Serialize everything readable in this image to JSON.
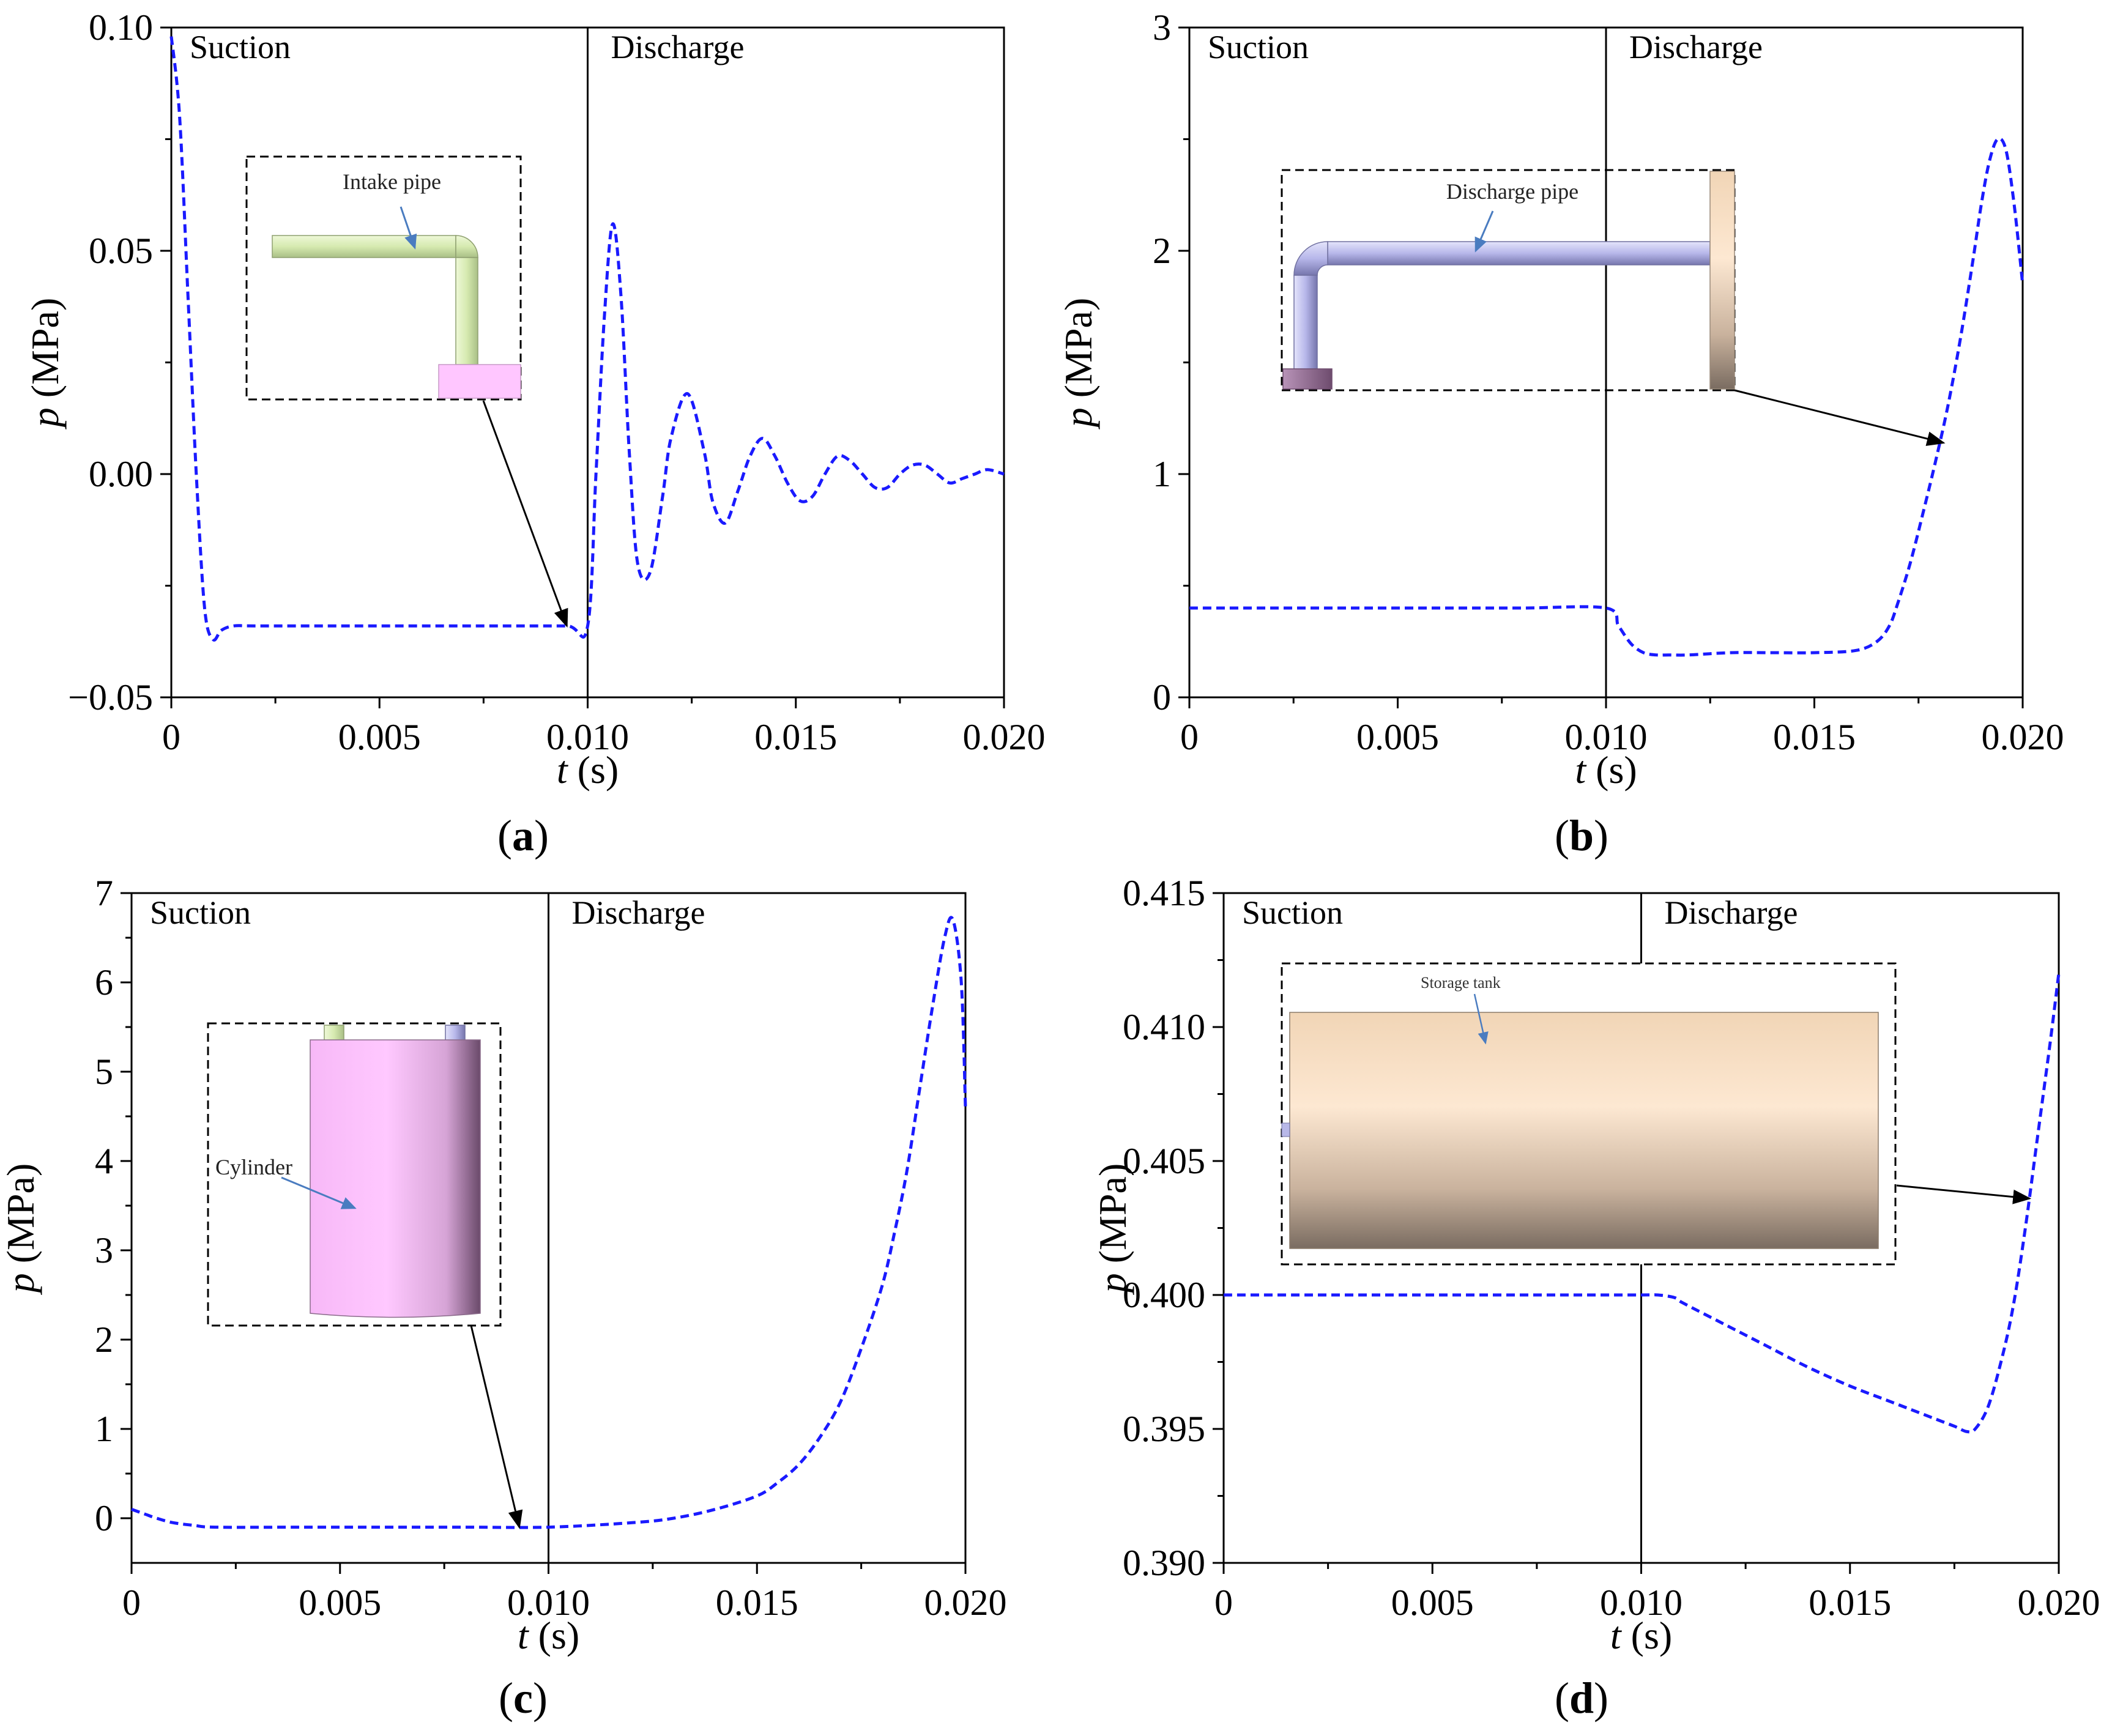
{
  "colors": {
    "series": "#1a1aff",
    "axis": "#000000",
    "pipe_green": "#d9ecb4",
    "pipe_purple": "#b8b8e8",
    "cylinder_pink": "#ffc6ff",
    "tank_tan": "#f1d9bc",
    "arrow_blue": "#4a7cc0"
  },
  "chart_data": [
    {
      "id": "a",
      "type": "line",
      "panel_label": "a",
      "xlabel_var": "t",
      "xlabel_unit": " (s)",
      "ylabel_var": "p",
      "ylabel_unit": " (MPa)",
      "xlim": [
        0,
        0.02
      ],
      "ylim": [
        -0.05,
        0.1
      ],
      "xticks": [
        0,
        0.005,
        0.01,
        0.015,
        0.02
      ],
      "xtick_labels": [
        "0",
        "0.005",
        "0.010",
        "0.015",
        "0.020"
      ],
      "yticks": [
        -0.05,
        0,
        0.05,
        0.1
      ],
      "ytick_labels": [
        "−0.05",
        "0.00",
        "0.05",
        "0.10"
      ],
      "divider_x": 0.01,
      "phase_labels": [
        "Suction",
        "Discharge"
      ],
      "inset_label": "Intake pipe",
      "arrow_target": [
        0.0095,
        -0.034
      ],
      "series": [
        {
          "name": "p",
          "style": "dashed",
          "x": [
            0,
            0.0002,
            0.0004,
            0.0006,
            0.0008,
            0.001,
            0.0012,
            0.0015,
            0.002,
            0.004,
            0.006,
            0.008,
            0.0095,
            0.01,
            0.0102,
            0.0104,
            0.0106,
            0.0108,
            0.011,
            0.0112,
            0.0115,
            0.0118,
            0.012,
            0.0124,
            0.0128,
            0.013,
            0.0133,
            0.0136,
            0.0139,
            0.0142,
            0.0145,
            0.0148,
            0.0151,
            0.0154,
            0.0157,
            0.016,
            0.0163,
            0.0166,
            0.0169,
            0.0172,
            0.0175,
            0.0178,
            0.0181,
            0.0184,
            0.0187,
            0.019,
            0.0193,
            0.0196,
            0.02
          ],
          "y": [
            0.098,
            0.08,
            0.04,
            0.0,
            -0.03,
            -0.037,
            -0.035,
            -0.034,
            -0.034,
            -0.034,
            -0.034,
            -0.034,
            -0.034,
            -0.034,
            0.0,
            0.035,
            0.056,
            0.04,
            0.005,
            -0.02,
            -0.022,
            -0.005,
            0.008,
            0.018,
            0.005,
            -0.006,
            -0.011,
            -0.004,
            0.004,
            0.008,
            0.004,
            -0.002,
            -0.006,
            -0.005,
            0.0,
            0.004,
            0.003,
            0.0,
            -0.003,
            -0.003,
            0.0,
            0.002,
            0.002,
            0.0,
            -0.002,
            -0.001,
            0.0,
            0.001,
            0.0
          ]
        }
      ]
    },
    {
      "id": "b",
      "type": "line",
      "panel_label": "b",
      "xlabel_var": "t",
      "xlabel_unit": " (s)",
      "ylabel_var": "p",
      "ylabel_unit": " (MPa)",
      "xlim": [
        0,
        0.02
      ],
      "ylim": [
        0,
        3
      ],
      "xticks": [
        0,
        0.005,
        0.01,
        0.015,
        0.02
      ],
      "xtick_labels": [
        "0",
        "0.005",
        "0.010",
        "0.015",
        "0.020"
      ],
      "yticks": [
        0,
        1,
        2,
        3
      ],
      "ytick_labels": [
        "0",
        "1",
        "2",
        "3"
      ],
      "divider_x": 0.01,
      "phase_labels": [
        "Suction",
        "Discharge"
      ],
      "inset_label": "Discharge pipe",
      "arrow_target": [
        0.0181,
        1.14
      ],
      "series": [
        {
          "name": "p",
          "style": "dashed",
          "x": [
            0,
            0.002,
            0.004,
            0.006,
            0.008,
            0.01,
            0.0103,
            0.0106,
            0.0109,
            0.0112,
            0.0115,
            0.012,
            0.013,
            0.014,
            0.015,
            0.016,
            0.0165,
            0.0168,
            0.017,
            0.0173,
            0.0176,
            0.0179,
            0.0182,
            0.0185,
            0.0188,
            0.019,
            0.0192,
            0.0194,
            0.0196,
            0.0198,
            0.02
          ],
          "y": [
            0.4,
            0.4,
            0.4,
            0.4,
            0.4,
            0.4,
            0.32,
            0.24,
            0.2,
            0.19,
            0.19,
            0.19,
            0.2,
            0.2,
            0.2,
            0.21,
            0.25,
            0.32,
            0.42,
            0.6,
            0.82,
            1.05,
            1.3,
            1.6,
            1.95,
            2.2,
            2.4,
            2.5,
            2.45,
            2.2,
            1.85
          ]
        }
      ]
    },
    {
      "id": "c",
      "type": "line",
      "panel_label": "c",
      "xlabel_var": "t",
      "xlabel_unit": " (s)",
      "ylabel_var": "p",
      "ylabel_unit": " (MPa)",
      "xlim": [
        0,
        0.02
      ],
      "ylim": [
        -0.5,
        7
      ],
      "xticks": [
        0,
        0.005,
        0.01,
        0.015,
        0.02
      ],
      "xtick_labels": [
        "0",
        "0.005",
        "0.010",
        "0.015",
        "0.020"
      ],
      "yticks": [
        0,
        1,
        2,
        3,
        4,
        5,
        6,
        7
      ],
      "ytick_labels": [
        "0",
        "1",
        "2",
        "3",
        "4",
        "5",
        "6",
        "7"
      ],
      "divider_x": 0.01,
      "phase_labels": [
        "Suction",
        "Discharge"
      ],
      "inset_label": "Cylinder",
      "arrow_target": [
        0.0093,
        -0.1
      ],
      "series": [
        {
          "name": "p",
          "style": "dashed",
          "x": [
            0,
            0.0003,
            0.0006,
            0.001,
            0.0015,
            0.002,
            0.004,
            0.006,
            0.008,
            0.01,
            0.012,
            0.013,
            0.014,
            0.015,
            0.0155,
            0.016,
            0.0165,
            0.017,
            0.0175,
            0.018,
            0.0183,
            0.0186,
            0.0189,
            0.0192,
            0.0195,
            0.0197,
            0.0199,
            0.02
          ],
          "y": [
            0.1,
            0.05,
            0.0,
            -0.05,
            -0.08,
            -0.1,
            -0.1,
            -0.1,
            -0.1,
            -0.1,
            -0.05,
            0.0,
            0.1,
            0.25,
            0.4,
            0.6,
            0.9,
            1.3,
            1.9,
            2.6,
            3.2,
            3.9,
            4.8,
            5.7,
            6.5,
            6.7,
            6.0,
            4.6
          ]
        }
      ]
    },
    {
      "id": "d",
      "type": "line",
      "panel_label": "d",
      "xlabel_var": "t",
      "xlabel_unit": " (s)",
      "ylabel_var": "p",
      "ylabel_unit": " (MPa)",
      "xlim": [
        0,
        0.02
      ],
      "ylim": [
        0.39,
        0.415
      ],
      "xticks": [
        0,
        0.005,
        0.01,
        0.015,
        0.02
      ],
      "xtick_labels": [
        "0",
        "0.005",
        "0.010",
        "0.015",
        "0.020"
      ],
      "yticks": [
        0.39,
        0.395,
        0.4,
        0.405,
        0.41,
        0.415
      ],
      "ytick_labels": [
        "0.390",
        "0.395",
        "0.400",
        "0.405",
        "0.410",
        "0.415"
      ],
      "divider_x": 0.01,
      "phase_labels": [
        "Suction",
        "Discharge"
      ],
      "inset_label": "Storage tank",
      "arrow_target": [
        0.0193,
        0.4036
      ],
      "series": [
        {
          "name": "p",
          "style": "dashed",
          "x": [
            0,
            0.002,
            0.004,
            0.006,
            0.008,
            0.01,
            0.0104,
            0.0108,
            0.011,
            0.012,
            0.013,
            0.014,
            0.015,
            0.016,
            0.017,
            0.0175,
            0.0178,
            0.018,
            0.0183,
            0.0186,
            0.0189,
            0.0192,
            0.0195,
            0.0198,
            0.02
          ],
          "y": [
            0.4,
            0.4,
            0.4,
            0.4,
            0.4,
            0.4,
            0.4,
            0.3999,
            0.3997,
            0.3989,
            0.3981,
            0.3973,
            0.3966,
            0.396,
            0.3954,
            0.3951,
            0.3949,
            0.395,
            0.3958,
            0.3974,
            0.3995,
            0.4025,
            0.406,
            0.4095,
            0.412
          ]
        }
      ]
    }
  ]
}
